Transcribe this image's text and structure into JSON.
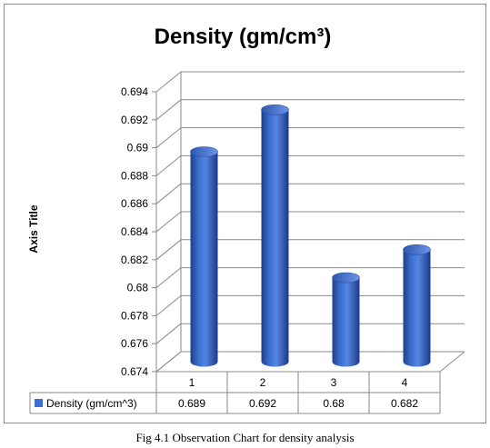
{
  "chart_data": {
    "type": "bar",
    "title": "Density (gm/cm³)",
    "ylabel": "Axis Title",
    "xlabel": "",
    "categories": [
      "1",
      "2",
      "3",
      "4"
    ],
    "series": [
      {
        "name": "Density (gm/cm^3)",
        "values": [
          0.689,
          0.692,
          0.68,
          0.682
        ],
        "value_labels": [
          "0.689",
          "0.692",
          "0.68",
          "0.682"
        ]
      }
    ],
    "ylim": [
      0.674,
      0.694
    ],
    "yticks": [
      "0.674",
      "0.676",
      "0.678",
      "0.68",
      "0.682",
      "0.684",
      "0.686",
      "0.688",
      "0.69",
      "0.692",
      "0.694"
    ],
    "bar_style": "3d-cylinder",
    "grid": true,
    "legend": "data-table-below",
    "colors": {
      "bar": "#3b6fd0",
      "grid": "#8a8a8a"
    }
  },
  "caption": "Fig 4.1 Observation Chart for density analysis"
}
